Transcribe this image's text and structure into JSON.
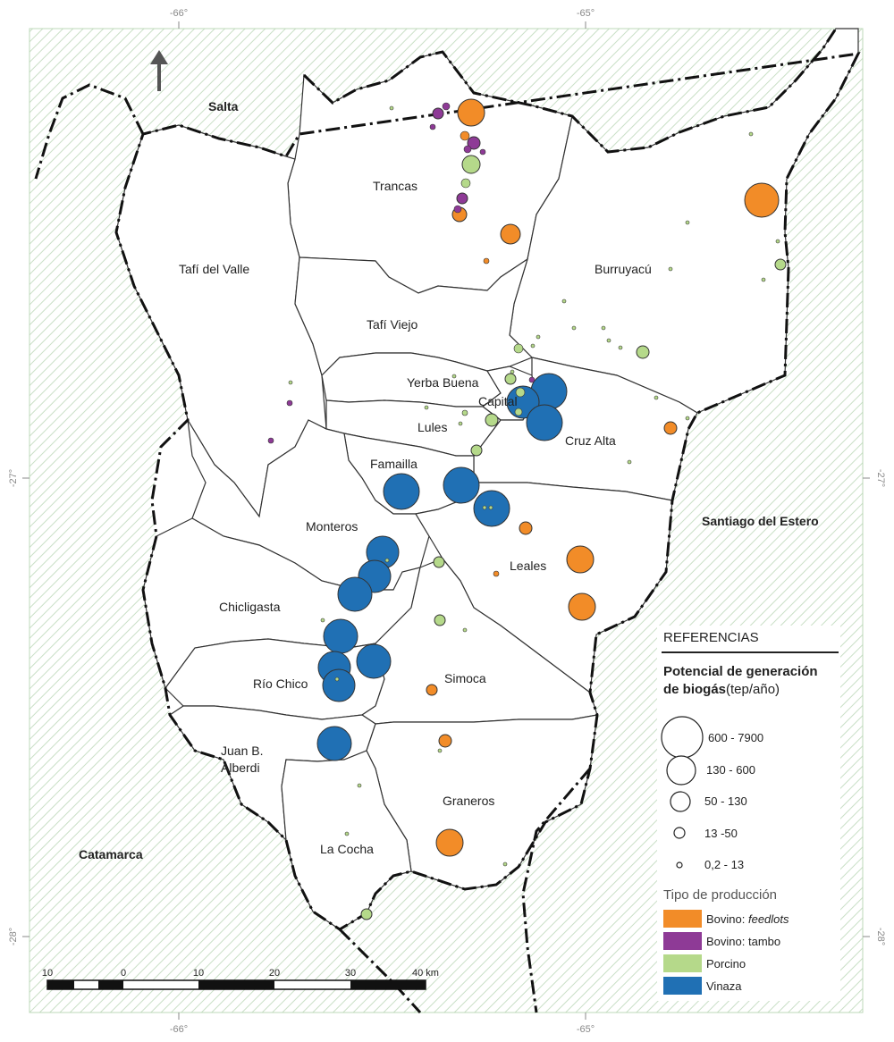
{
  "grid": {
    "top": [
      "-66°",
      "-65°"
    ],
    "bottom": [
      "-66°",
      "-65°"
    ],
    "left": [
      "-27°",
      "-28°"
    ],
    "right": [
      "-27°",
      "-28°"
    ]
  },
  "regions": [
    "Salta",
    "Santiago del Estero",
    "Catamarca"
  ],
  "departments": [
    "Trancas",
    "Burruyacú",
    "Tafí del Valle",
    "Tafí Viejo",
    "Yerba Buena",
    "Capital",
    "Lules",
    "Cruz Alta",
    "Famailla",
    "Monteros",
    "Leales",
    "Chicligasta",
    "Río Chico",
    "Simoca",
    "Juan B.",
    "Alberdi",
    "Graneros",
    "La Cocha"
  ],
  "legend": {
    "title": "REFERENCIAS",
    "potential_line1": "Potencial de generación",
    "potential_line2": "de biogás",
    "potential_unit": "(tep/año)",
    "size_classes": [
      {
        "label": "600 - 7900"
      },
      {
        "label": "130 - 600"
      },
      {
        "label": "50 - 130"
      },
      {
        "label": "13 -50"
      },
      {
        "label": "0,2 - 13"
      }
    ],
    "type_title": "Tipo de producción",
    "types": [
      {
        "label_main": "Bovino: ",
        "label_em": "feedlots",
        "color": "#f28c28"
      },
      {
        "label_main": "Bovino: tambo",
        "label_em": "",
        "color": "#8e3a96"
      },
      {
        "label_main": "Porcino",
        "label_em": "",
        "color": "#b5d98a"
      },
      {
        "label_main": "Vinaza",
        "label_em": "",
        "color": "#2070b4"
      }
    ]
  },
  "scale_bar": {
    "labels": [
      "10",
      "0",
      "10",
      "20",
      "30",
      "40 km"
    ]
  },
  "colors": {
    "feedlot": "#f28c28",
    "tambo": "#8e3a96",
    "porcino": "#b5d98a",
    "vinaza": "#2070b4",
    "hatch": "#c9dfc6"
  },
  "icons": [
    "north-arrow-icon"
  ]
}
